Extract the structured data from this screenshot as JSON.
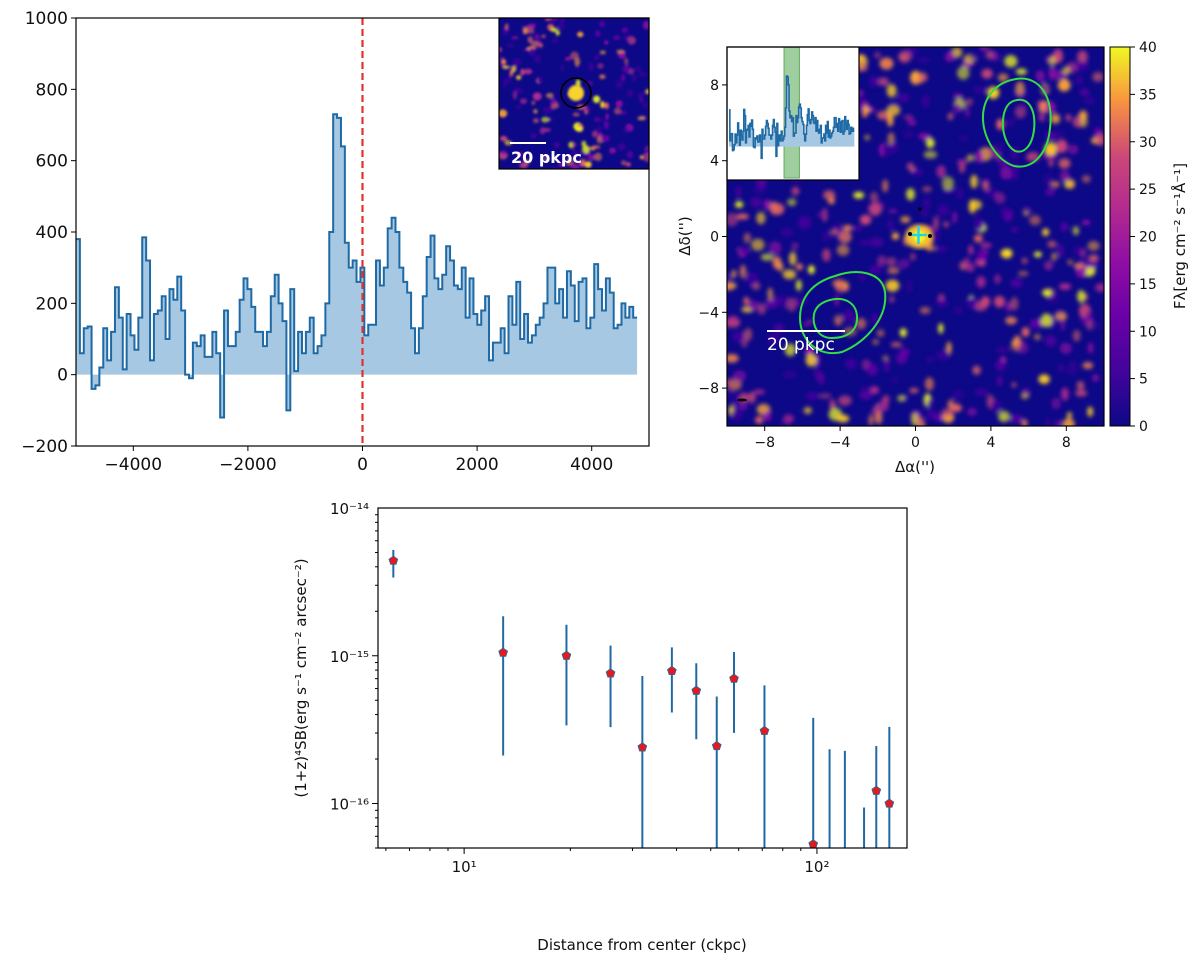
{
  "figure": {
    "spectrum_panel": {
      "inset_scalebar_label": "20 pkpc"
    },
    "map_panel": {
      "xlabel": "Δα('')",
      "ylabel": "Δδ('')",
      "scalebar_label": "20 pkpc",
      "colorbar_label": "Fλ[erg cm⁻² s⁻¹Å⁻¹]"
    },
    "profile_panel": {
      "xlabel": "Distance from center (ckpc)",
      "ylabel": "(1+z)⁴SB(erg s⁻¹ cm⁻² arcsec⁻²)"
    }
  },
  "colors": {
    "spectrum_line": "#1f6aa5",
    "spectrum_fill": "#a6c8e3",
    "zero_line": "#e0322b",
    "contour": "#33dd44",
    "marker": "#e41a1c",
    "errorbar": "#1f6aa5",
    "marker_plus": "#22d3ee"
  },
  "chart_data": [
    {
      "type": "line",
      "panel": "spectrum",
      "style": "step-filled",
      "xlim": [
        -5000,
        5000
      ],
      "ylim": [
        -200,
        1000
      ],
      "xticks": [
        -4000,
        -2000,
        0,
        2000,
        4000
      ],
      "yticks": [
        -200,
        0,
        200,
        400,
        600,
        800,
        1000
      ],
      "vertical_dashed_line_x": 0,
      "bin_start": -5000,
      "bin_width": 68,
      "values": [
        380,
        60,
        130,
        135,
        -40,
        -30,
        20,
        130,
        40,
        120,
        245,
        160,
        15,
        170,
        110,
        70,
        160,
        385,
        320,
        40,
        170,
        180,
        220,
        100,
        240,
        210,
        275,
        180,
        0,
        -10,
        90,
        80,
        110,
        50,
        50,
        120,
        60,
        -120,
        180,
        80,
        80,
        120,
        210,
        270,
        240,
        190,
        120,
        120,
        80,
        120,
        220,
        280,
        200,
        150,
        -100,
        240,
        10,
        120,
        60,
        120,
        160,
        60,
        80,
        110,
        200,
        400,
        730,
        720,
        640,
        370,
        300,
        320,
        260,
        300,
        110,
        140,
        140,
        320,
        250,
        300,
        410,
        440,
        400,
        300,
        260,
        230,
        130,
        60,
        130,
        220,
        330,
        390,
        270,
        240,
        280,
        360,
        320,
        250,
        240,
        300,
        160,
        270,
        170,
        140,
        180,
        220,
        40,
        90,
        90,
        130,
        60,
        220,
        140,
        260,
        100,
        170,
        90,
        110,
        140,
        160,
        200,
        300,
        300,
        200,
        240,
        160,
        290,
        250,
        150,
        260,
        270,
        130,
        160,
        310,
        240,
        180,
        270,
        230,
        130,
        140,
        200,
        160,
        190,
        160
      ]
    },
    {
      "type": "heatmap",
      "panel": "image",
      "xlim": [
        -10,
        10
      ],
      "ylim": [
        -10,
        10
      ],
      "xticks": [
        -8,
        -4,
        0,
        4,
        8
      ],
      "yticks": [
        -8,
        -4,
        0,
        4,
        8
      ],
      "colormap": "plasma",
      "clim": [
        0,
        40
      ],
      "colorbar_ticks": [
        0,
        5,
        10,
        15,
        20,
        25,
        30,
        35,
        40
      ],
      "center_marker": [
        0.2,
        0.0
      ]
    },
    {
      "type": "scatter",
      "panel": "sb_profile",
      "xscale": "log",
      "yscale": "log",
      "xlim": [
        5.7,
        180
      ],
      "ylim": [
        5e-17,
        1e-14
      ],
      "xtick_labels": [
        "10¹",
        "10²"
      ],
      "ytick_labels": [
        "10⁻¹⁶",
        "10⁻¹⁵",
        "10⁻¹⁴"
      ],
      "x": [
        6.3,
        12.9,
        19.5,
        26.0,
        32.0,
        38.8,
        45.5,
        52.0,
        58.2,
        71.0,
        97.6,
        108.6,
        120.0,
        136.0,
        147.3,
        160.4
      ],
      "y": [
        4.4e-15,
        1.05e-15,
        1e-15,
        7.6e-16,
        2.4e-16,
        7.9e-16,
        5.8e-16,
        2.45e-16,
        7e-16,
        3.1e-16,
        5.3e-17,
        null,
        null,
        null,
        1.22e-16,
        1e-16
      ],
      "y_err_low": [
        3.6e-15,
        2.25e-16,
        3.6e-16,
        3.5e-16,
        5e-17,
        4.4e-16,
        2.9e-16,
        5e-17,
        3.2e-16,
        5e-17,
        5e-17,
        5e-17,
        5e-17,
        5e-17,
        5e-17,
        5e-17
      ],
      "y_err_high": [
        5.2e-15,
        1.85e-15,
        1.62e-15,
        1.17e-15,
        7.3e-16,
        1.14e-15,
        8.9e-16,
        5.3e-16,
        1.06e-15,
        6.3e-16,
        3.8e-16,
        2.33e-16,
        2.27e-16,
        9.4e-17,
        2.45e-16,
        3.3e-16
      ]
    }
  ]
}
